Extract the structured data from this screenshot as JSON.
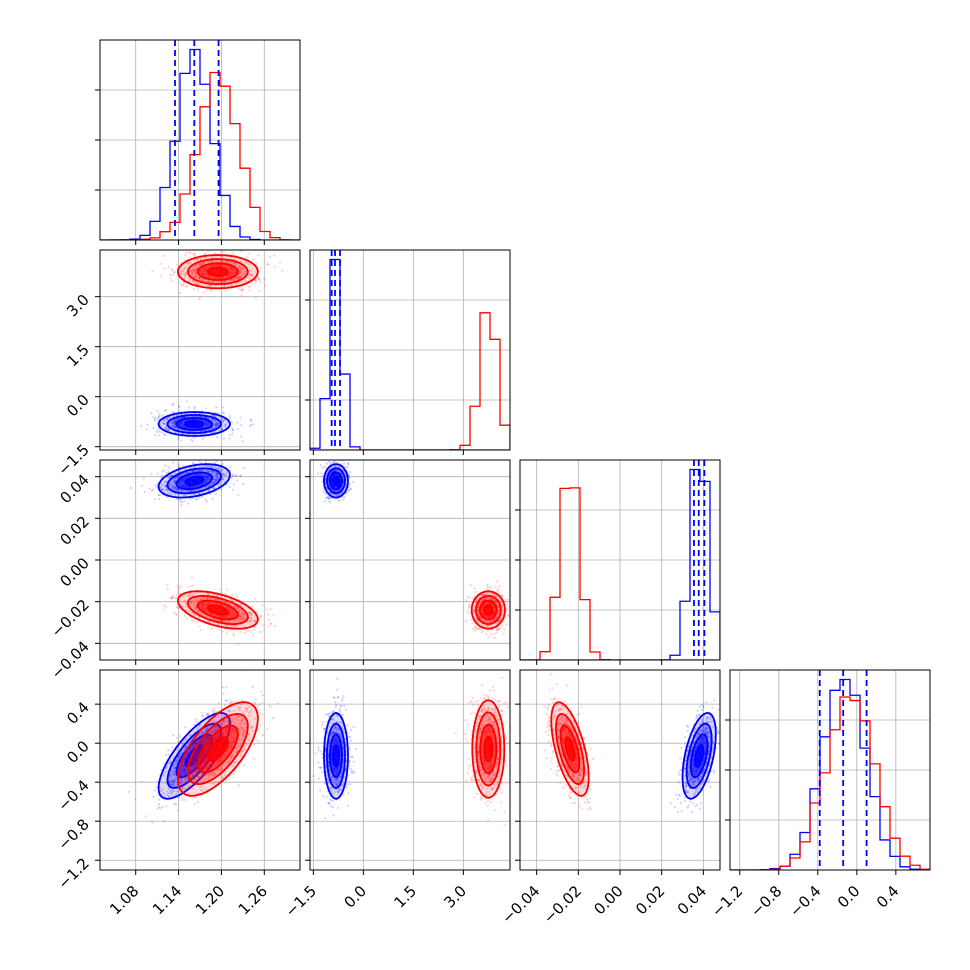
{
  "chart_data": {
    "type": "corner",
    "grid": true,
    "colors": {
      "series_a": "#0000ff",
      "series_b": "#ff0000"
    },
    "parameters": [
      {
        "range": [
          1.03,
          1.31
        ],
        "ticks": [
          1.08,
          1.14,
          1.2,
          1.26
        ],
        "tick_labels": [
          "1.08",
          "1.14",
          "1.20",
          "1.26"
        ],
        "quantiles_series_a": [
          1.135,
          1.162,
          1.196
        ]
      },
      {
        "range": [
          -1.6,
          4.4
        ],
        "ticks": [
          -1.5,
          0.0,
          1.5,
          3.0
        ],
        "tick_labels": [
          "−1.5",
          "0.0",
          "1.5",
          "3.0"
        ],
        "quantiles_series_a": [
          -0.95,
          -0.85,
          -0.7
        ]
      },
      {
        "range": [
          -0.048,
          0.048
        ],
        "ticks": [
          -0.04,
          -0.02,
          0.0,
          0.02,
          0.04
        ],
        "tick_labels": [
          "−0.04",
          "−0.02",
          "0.00",
          "0.02",
          "0.04"
        ],
        "quantiles_series_a": [
          0.0355,
          0.0378,
          0.0405
        ]
      },
      {
        "range": [
          -1.3,
          0.75
        ],
        "ticks": [
          -1.2,
          -0.8,
          -0.4,
          0.0,
          0.4
        ],
        "tick_labels": [
          "−1.2",
          "−0.8",
          "−0.4",
          "0.0",
          "0.4"
        ],
        "quantiles_series_a": [
          -0.38,
          -0.14,
          0.1
        ]
      }
    ],
    "series": [
      {
        "color": "#0000ff",
        "mean": [
          1.162,
          -0.82,
          0.038,
          -0.13
        ],
        "std": [
          0.025,
          0.18,
          0.004,
          0.22
        ],
        "corr": {
          "0-3": 0.75,
          "2-3": 0.5,
          "0-2": 0.35
        }
      },
      {
        "color": "#ff0000",
        "mean": [
          1.195,
          3.75,
          -0.024,
          -0.06
        ],
        "std": [
          0.028,
          0.25,
          0.0045,
          0.24
        ],
        "corr": {
          "0-3": 0.65,
          "2-3": -0.6,
          "0-2": -0.5
        }
      }
    ]
  }
}
